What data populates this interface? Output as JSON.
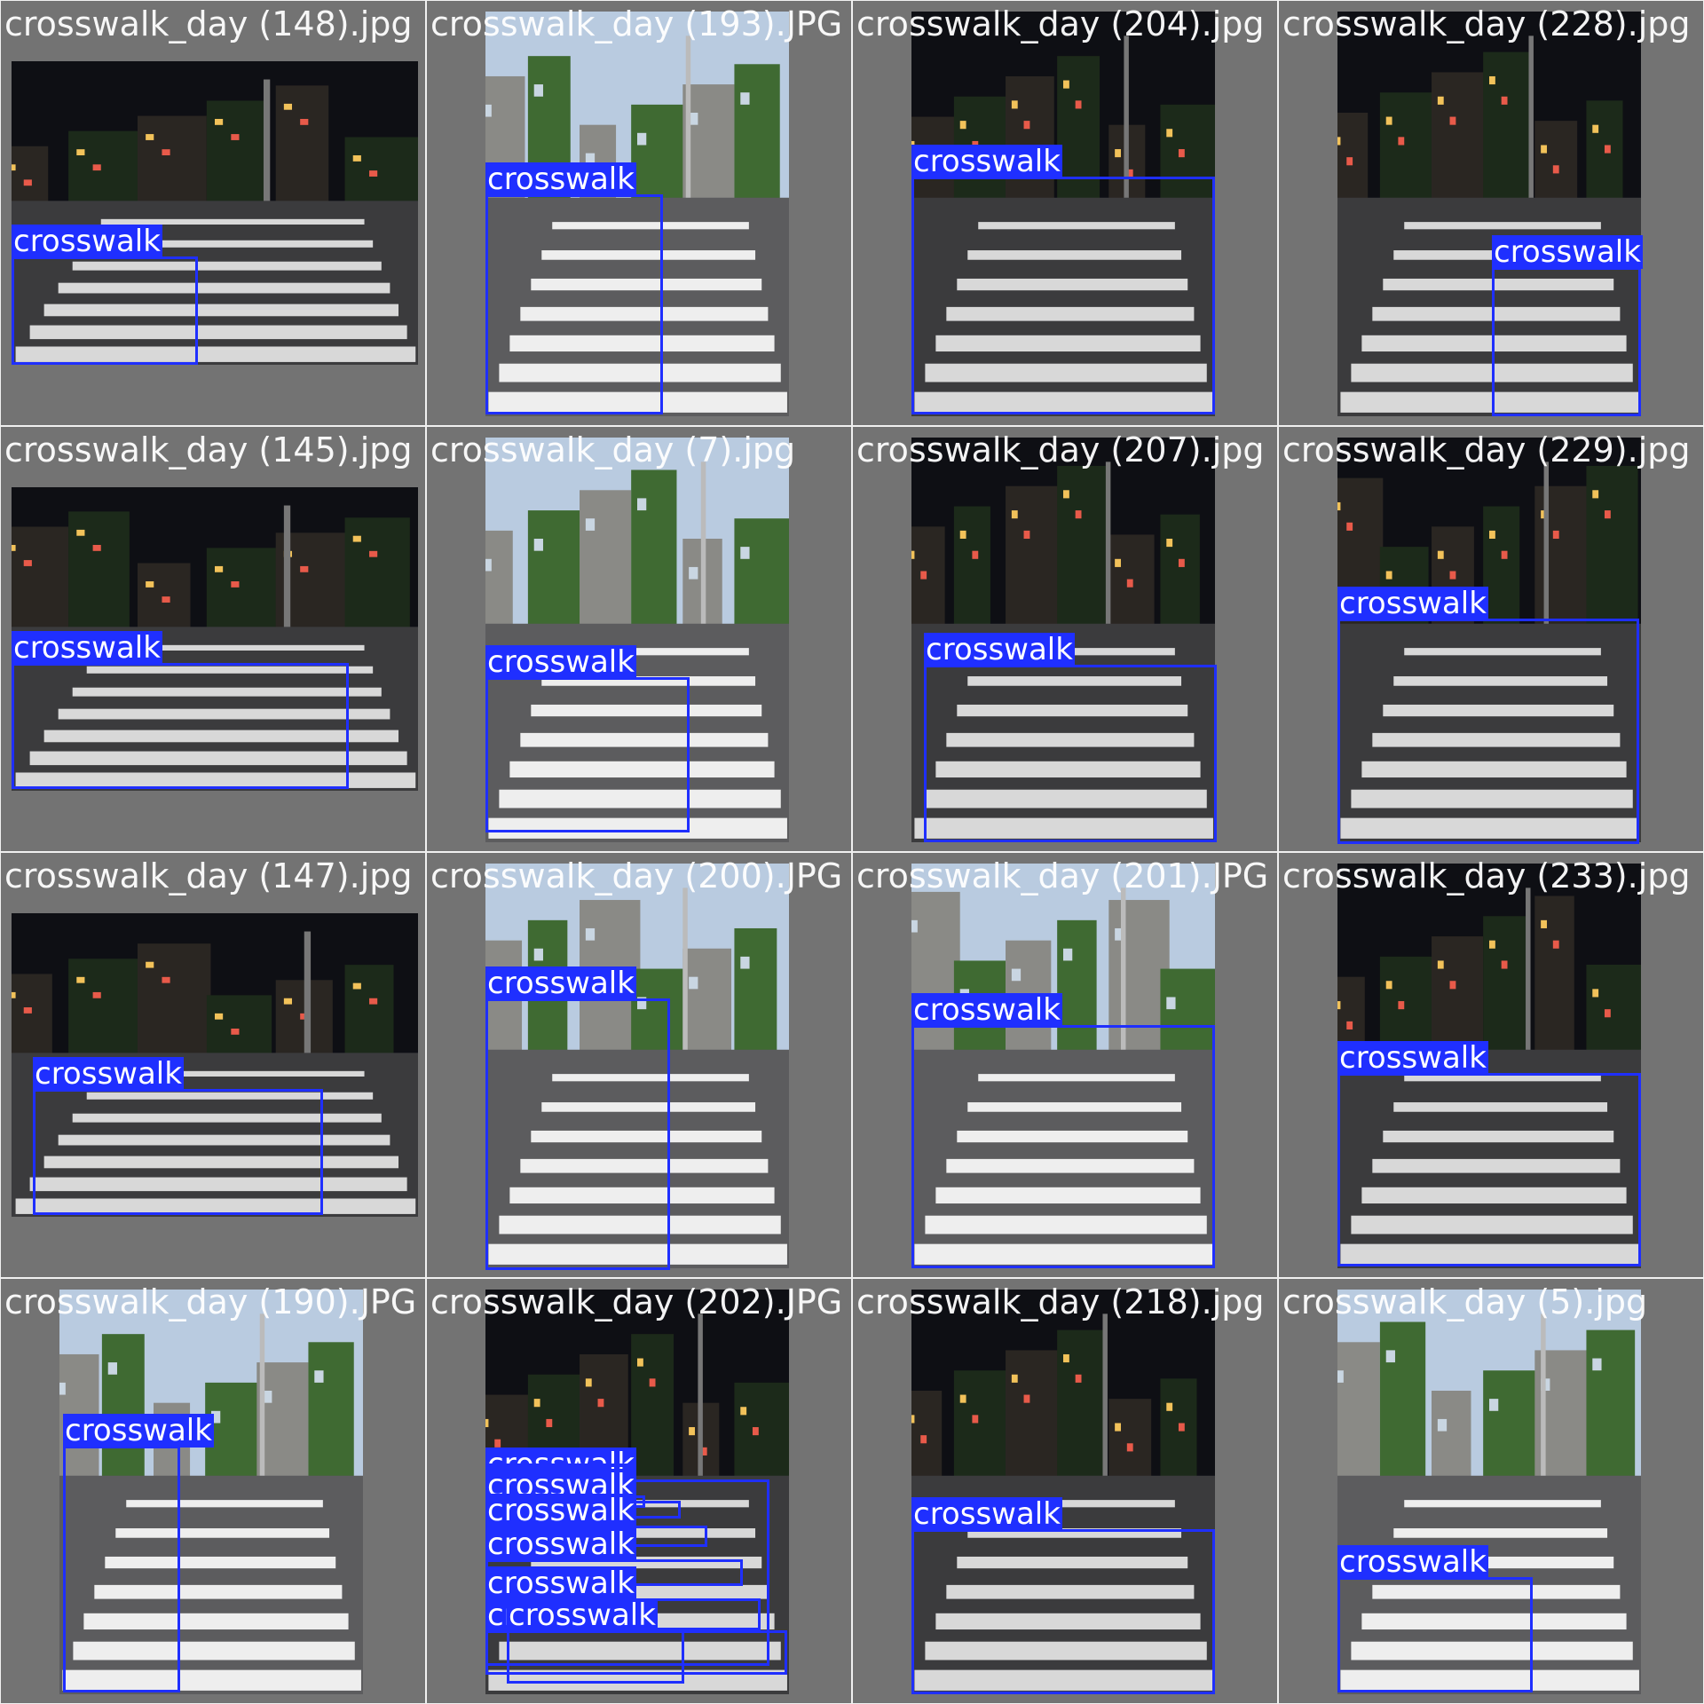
{
  "colors": {
    "background": "#737373",
    "box": "#1f2fff",
    "label_text": "#ffffff"
  },
  "class_label": "crosswalk",
  "tiles": [
    {
      "filename": "crosswalk_day (148).jpg",
      "scene": "night",
      "detections": [
        "crosswalk"
      ]
    },
    {
      "filename": "crosswalk_day (193).JPG",
      "scene": "day",
      "detections": [
        "crosswalk"
      ]
    },
    {
      "filename": "crosswalk_day (204).jpg",
      "scene": "night",
      "detections": [
        "crosswalk"
      ]
    },
    {
      "filename": "crosswalk_day (228).jpg",
      "scene": "night",
      "detections": [
        "crosswalk"
      ]
    },
    {
      "filename": "crosswalk_day (145).jpg",
      "scene": "night",
      "detections": [
        "crosswalk"
      ]
    },
    {
      "filename": "crosswalk_day (7).jpg",
      "scene": "day",
      "detections": [
        "crosswalk"
      ]
    },
    {
      "filename": "crosswalk_day (207).jpg",
      "scene": "night",
      "detections": [
        "crosswalk"
      ]
    },
    {
      "filename": "crosswalk_day (229).jpg",
      "scene": "night",
      "detections": [
        "crosswalk"
      ]
    },
    {
      "filename": "crosswalk_day (147).jpg",
      "scene": "night",
      "detections": [
        "crosswalk"
      ]
    },
    {
      "filename": "crosswalk_day (200).JPG",
      "scene": "day",
      "detections": [
        "crosswalk"
      ]
    },
    {
      "filename": "crosswalk_day (201).JPG",
      "scene": "day",
      "detections": [
        "crosswalk"
      ]
    },
    {
      "filename": "crosswalk_day (233).jpg",
      "scene": "night",
      "detections": [
        "crosswalk"
      ]
    },
    {
      "filename": "crosswalk_day (190).JPG",
      "scene": "day",
      "detections": [
        "crosswalk"
      ]
    },
    {
      "filename": "crosswalk_day (202).JPG",
      "scene": "night",
      "detections": [
        "crosswalk",
        "crosswalk",
        "crosswalk",
        "crosswalk",
        "crosswalk",
        "crosswalk",
        "crosswalk",
        "crosswalk"
      ]
    },
    {
      "filename": "crosswalk_day (218).jpg",
      "scene": "night",
      "detections": [
        "crosswalk"
      ]
    },
    {
      "filename": "crosswalk_day (5).jpg",
      "scene": "day",
      "detections": [
        "crosswalk"
      ]
    }
  ]
}
